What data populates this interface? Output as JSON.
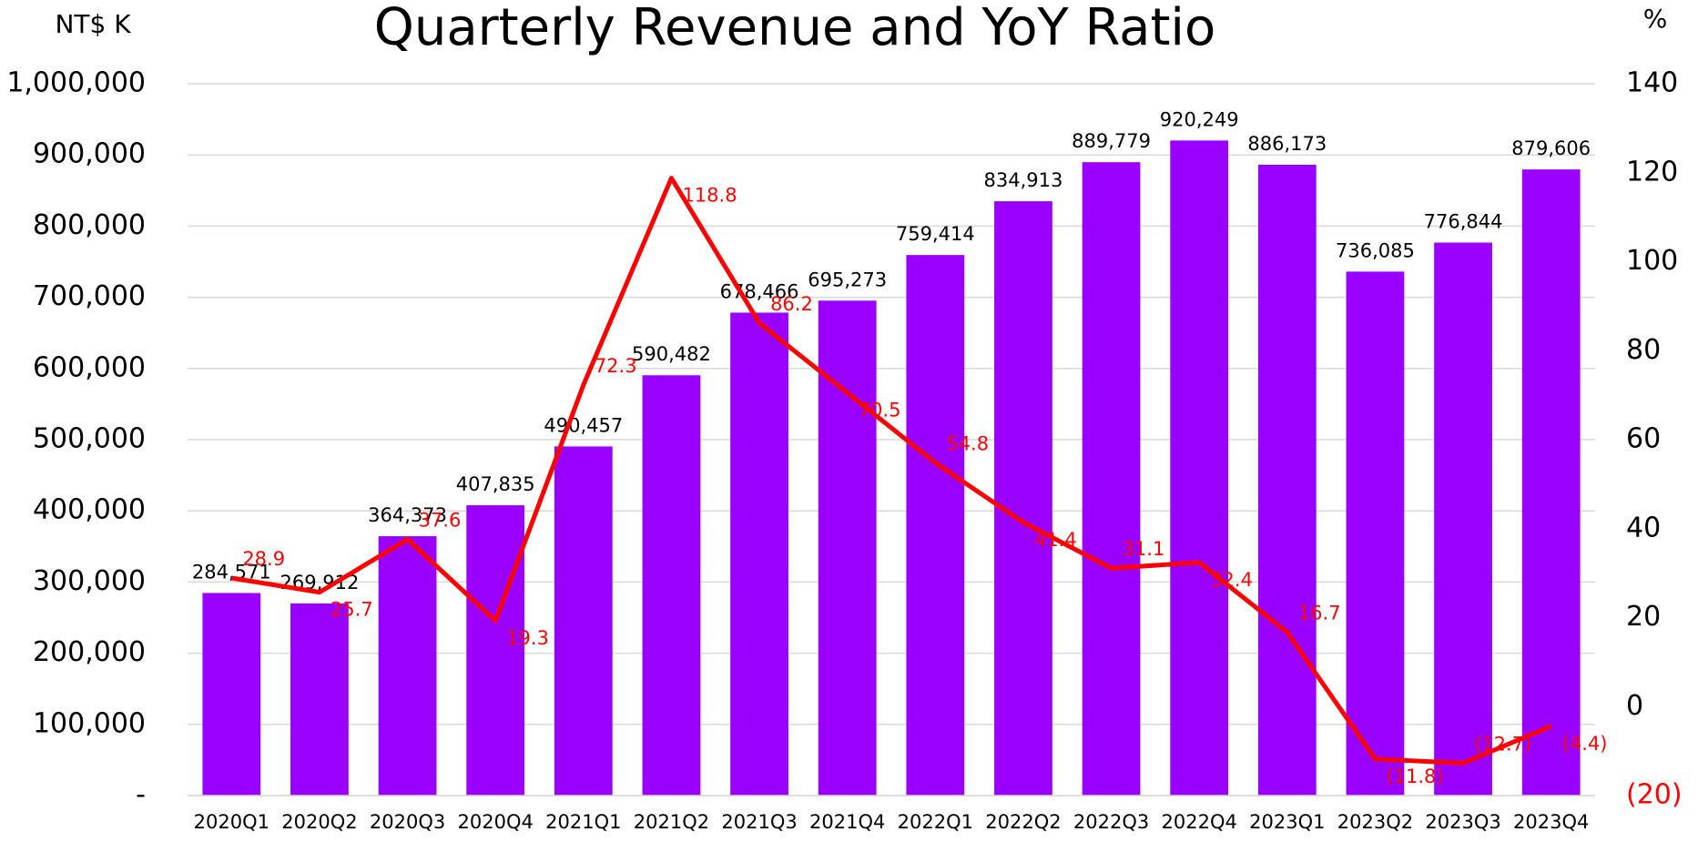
{
  "chart_data": {
    "type": "bar",
    "title": "Quarterly Revenue and YoY Ratio",
    "ylabel": "NT$ K",
    "y2label": "%",
    "categories": [
      "2020Q1",
      "2020Q2",
      "2020Q3",
      "2020Q4",
      "2021Q1",
      "2021Q2",
      "2021Q3",
      "2021Q4",
      "2022Q1",
      "2022Q2",
      "2022Q3",
      "2022Q4",
      "2023Q1",
      "2023Q2",
      "2023Q3",
      "2023Q4"
    ],
    "series": [
      {
        "type": "bar",
        "color": "#9900ff",
        "values": [
          284571,
          269912,
          364373,
          407835,
          490457,
          590482,
          678466,
          695273,
          759414,
          834913,
          889779,
          920249,
          886173,
          736085,
          776844,
          879606
        ],
        "value_labels": [
          "284,571",
          "269,912",
          "364,373",
          "407,835",
          "490,457",
          "590,482",
          "678,466",
          "695,273",
          "759,414",
          "834,913",
          "889,779",
          "920,249",
          "886,173",
          "736,085",
          "776,844",
          "879,606"
        ]
      },
      {
        "type": "line",
        "color": "#ff0000",
        "axis": "y2",
        "values": [
          28.9,
          25.7,
          37.6,
          19.3,
          72.3,
          118.8,
          86.2,
          70.5,
          54.8,
          41.4,
          31.1,
          32.4,
          16.7,
          -11.8,
          -12.7,
          -4.4
        ],
        "value_labels": [
          "28.9",
          "25.7",
          "37.6",
          "19.3",
          "72.3",
          "118.8",
          "86.2",
          "70.5",
          "54.8",
          "41.4",
          "31.1",
          "32.4",
          "16.7",
          "(11.8)",
          "(12.7)",
          "(4.4)"
        ]
      }
    ],
    "ylim": [
      0,
      1000000
    ],
    "yticks": [
      {
        "value": 0,
        "label": "-"
      },
      {
        "value": 100000,
        "label": "100,000"
      },
      {
        "value": 200000,
        "label": "200,000"
      },
      {
        "value": 300000,
        "label": "300,000"
      },
      {
        "value": 400000,
        "label": "400,000"
      },
      {
        "value": 500000,
        "label": "500,000"
      },
      {
        "value": 600000,
        "label": "600,000"
      },
      {
        "value": 700000,
        "label": "700,000"
      },
      {
        "value": 800000,
        "label": "800,000"
      },
      {
        "value": 900000,
        "label": "900,000"
      },
      {
        "value": 1000000,
        "label": "1,000,000"
      }
    ],
    "y2lim": [
      -20,
      140
    ],
    "y2ticks": [
      {
        "value": -20,
        "label": "(20)"
      },
      0,
      20,
      40,
      60,
      80,
      100,
      120,
      140
    ],
    "grid": true
  }
}
